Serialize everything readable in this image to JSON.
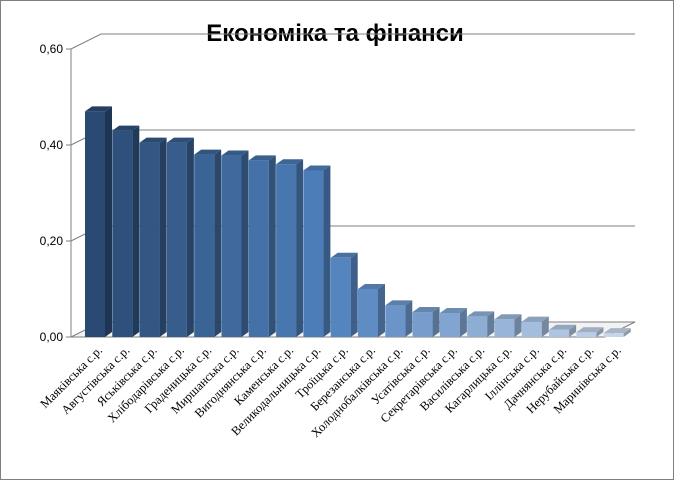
{
  "chart_data": {
    "type": "bar",
    "title": "Економіка та фінанси",
    "xlabel": "",
    "ylabel": "",
    "ylim": [
      0,
      0.6
    ],
    "y_ticks": [
      "0,00",
      "0,20",
      "0,40",
      "0,60"
    ],
    "y_tick_values": [
      0,
      0.2,
      0.4,
      0.6
    ],
    "grid": true,
    "three_d": true,
    "legend": "none",
    "categories": [
      "Маяківська с.р.",
      "Августівська с.р.",
      "Яськівська с.р.",
      "Хлібодарівська с.р.",
      "Градениць­ка с.р.",
      "Миршанська с.р.",
      "Виго­днянська с.р.",
      "Каменська с.р.",
      "Великодальницька с.р.",
      "Троїцька с.р.",
      "Березанська с.р.",
      "Холоднобалківська с.р.",
      "Усатівська с.р.",
      "Секретарівська с.р.",
      "Василівська с.р.",
      "Кагарлицька с.р.",
      "Іллінська с.р.",
      "Дачнянська с.р.",
      "Нерубайська с.р.",
      "Маринівська с.р."
    ],
    "values": [
      0.47,
      0.43,
      0.405,
      0.405,
      0.38,
      0.378,
      0.368,
      0.36,
      0.347,
      0.165,
      0.1,
      0.066,
      0.052,
      0.05,
      0.043,
      0.037,
      0.032,
      0.015,
      0.01,
      0.008
    ],
    "colors": {
      "bar_dark": "#2a4a73",
      "bar_mid": "#4f81bd",
      "bar_light": "#c5d5ea",
      "grid": "#7f7f7f",
      "floor": "#f2f2f2"
    }
  }
}
